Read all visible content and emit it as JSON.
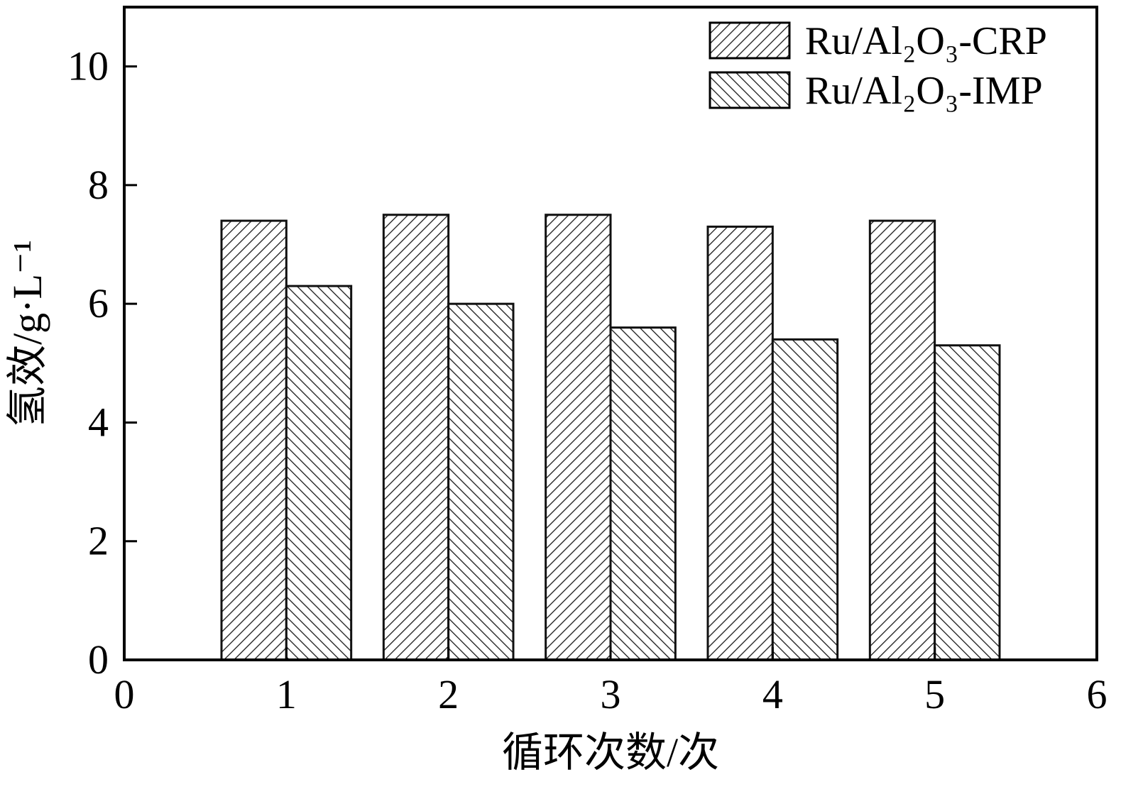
{
  "figure": {
    "background": "#ffffff",
    "ink_color": "#000000"
  },
  "chart_data": {
    "type": "bar",
    "categories": [
      1,
      2,
      3,
      4,
      5
    ],
    "series": [
      {
        "name": "Ru/Al₂O₃-CRP",
        "hatch": "forward",
        "values": [
          7.4,
          7.5,
          7.5,
          7.3,
          7.4
        ]
      },
      {
        "name": "Ru/Al₂O₃-IMP",
        "hatch": "backward",
        "values": [
          6.3,
          6.0,
          5.6,
          5.4,
          5.3
        ]
      }
    ],
    "title": "",
    "xlabel": "循环次数/次",
    "ylabel": "氢效/g·L⁻¹",
    "xlim": [
      0,
      6
    ],
    "ylim": [
      0,
      11
    ],
    "xticks": [
      0,
      1,
      2,
      3,
      4,
      5,
      6
    ],
    "yticks": [
      0,
      2,
      4,
      6,
      8,
      10
    ],
    "bar_width_units": 0.4,
    "grid": false,
    "legend_position": "top-right",
    "bar_fill": "#ffffff",
    "bar_edge_color": "#111111",
    "hatch_color": "#1a1a1a"
  }
}
